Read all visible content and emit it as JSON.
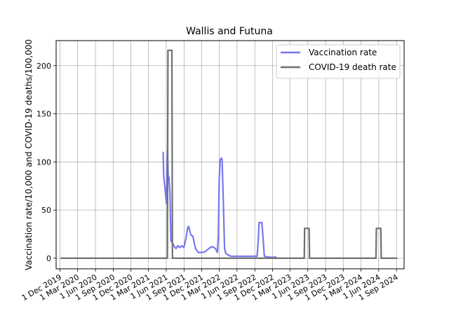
{
  "chart_data": {
    "type": "line",
    "title": "Wallis and Futuna",
    "xlabel": "",
    "ylabel": "Vaccination rate/10,000 and COVID-19 deaths/100,000",
    "xlim": [
      "2019-11-11",
      "2024-10-10"
    ],
    "ylim": [
      -11,
      226
    ],
    "grid": true,
    "legend_position": "top-right",
    "x_ticks": [
      "2019-12-01",
      "2020-03-01",
      "2020-06-01",
      "2020-09-01",
      "2020-12-01",
      "2021-03-01",
      "2021-06-01",
      "2021-09-01",
      "2021-12-01",
      "2022-03-01",
      "2022-06-01",
      "2022-09-01",
      "2022-12-01",
      "2023-03-01",
      "2023-06-01",
      "2023-09-01",
      "2023-12-01",
      "2024-03-01",
      "2024-06-01",
      "2024-09-01"
    ],
    "x_tick_labels": [
      "1 Dec 2019",
      "1 Mar 2020",
      "1 Jun 2020",
      "1 Sep 2020",
      "1 Dec 2020",
      "1 Mar 2021",
      "1 Jun 2021",
      "1 Sep 2021",
      "1 Dec 2021",
      "1 Mar 2022",
      "1 Jun 2022",
      "1 Sep 2022",
      "1 Dec 2022",
      "1 Mar 2023",
      "1 Jun 2023",
      "1 Sep 2023",
      "1 Dec 2023",
      "1 Mar 2024",
      "1 Jun 2024",
      "1 Sep 2024"
    ],
    "y_ticks": [
      0,
      50,
      100,
      150,
      200
    ],
    "y_tick_labels": [
      "0",
      "50",
      "100",
      "150",
      "200"
    ],
    "series": [
      {
        "name": "Vaccination rate",
        "color": "#7777f0",
        "points": [
          [
            "2021-05-16",
            110
          ],
          [
            "2021-05-19",
            85
          ],
          [
            "2021-05-27",
            70
          ],
          [
            "2021-06-02",
            57
          ],
          [
            "2021-06-06",
            100
          ],
          [
            "2021-06-08",
            113
          ],
          [
            "2021-06-11",
            85
          ],
          [
            "2021-06-15",
            84
          ],
          [
            "2021-06-20",
            68
          ],
          [
            "2021-06-25",
            18
          ],
          [
            "2021-07-03",
            16
          ],
          [
            "2021-07-13",
            12
          ],
          [
            "2021-07-21",
            10
          ],
          [
            "2021-07-31",
            13
          ],
          [
            "2021-08-11",
            11
          ],
          [
            "2021-08-21",
            13
          ],
          [
            "2021-08-31",
            11
          ],
          [
            "2021-09-10",
            20
          ],
          [
            "2021-09-20",
            32
          ],
          [
            "2021-09-25",
            33
          ],
          [
            "2021-10-06",
            24
          ],
          [
            "2021-10-16",
            23
          ],
          [
            "2021-10-30",
            10
          ],
          [
            "2021-11-13",
            6
          ],
          [
            "2021-12-06",
            6
          ],
          [
            "2021-12-20",
            7
          ],
          [
            "2022-01-13",
            11
          ],
          [
            "2022-01-27",
            12
          ],
          [
            "2022-02-10",
            10
          ],
          [
            "2022-02-20",
            6
          ],
          [
            "2022-02-25",
            25
          ],
          [
            "2022-03-01",
            80
          ],
          [
            "2022-03-06",
            102
          ],
          [
            "2022-03-11",
            104
          ],
          [
            "2022-03-16",
            103
          ],
          [
            "2022-03-21",
            70
          ],
          [
            "2022-03-29",
            10
          ],
          [
            "2022-04-04",
            5
          ],
          [
            "2022-04-18",
            3
          ],
          [
            "2022-05-02",
            2
          ],
          [
            "2022-06-02",
            2
          ],
          [
            "2022-07-01",
            2
          ],
          [
            "2022-08-04",
            2
          ],
          [
            "2022-09-01",
            2
          ],
          [
            "2022-09-13",
            2
          ],
          [
            "2022-09-19",
            20
          ],
          [
            "2022-09-23",
            37
          ],
          [
            "2022-10-07",
            37
          ],
          [
            "2022-10-14",
            20
          ],
          [
            "2022-10-20",
            2
          ],
          [
            "2022-11-15",
            1
          ],
          [
            "2022-12-20",
            1
          ]
        ]
      },
      {
        "name": "COVID-19 death rate",
        "color": "#707070",
        "points": [
          [
            "2019-12-07",
            0
          ],
          [
            "2021-06-07",
            0
          ],
          [
            "2021-06-10",
            216
          ],
          [
            "2021-06-30",
            216
          ],
          [
            "2021-07-03",
            0
          ],
          [
            "2023-05-14",
            0
          ],
          [
            "2023-05-16",
            31
          ],
          [
            "2023-06-08",
            31
          ],
          [
            "2023-06-10",
            0
          ],
          [
            "2024-05-18",
            0
          ],
          [
            "2024-05-20",
            31
          ],
          [
            "2024-06-12",
            31
          ],
          [
            "2024-06-14",
            0
          ],
          [
            "2024-09-02",
            0
          ]
        ]
      }
    ]
  }
}
